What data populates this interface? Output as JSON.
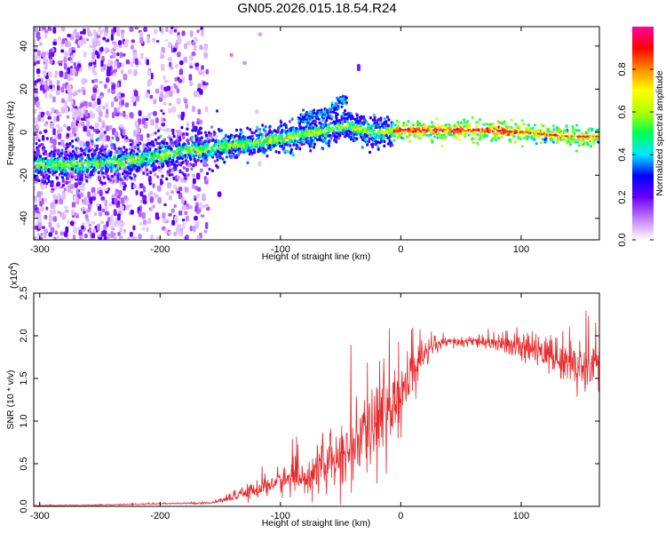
{
  "figure": {
    "title": "GN05.2026.015.18.54.R24"
  },
  "chart_data": [
    {
      "type": "heatmap",
      "xlabel": "Height of straight line (km)",
      "ylabel": "Frequency (Hz)",
      "xlim": [
        -305,
        165
      ],
      "ylim": [
        -50,
        49
      ],
      "xticks": [
        -300,
        -200,
        -100,
        0,
        100
      ],
      "yticks": [
        -40,
        -20,
        0,
        20,
        40
      ],
      "colorbar": {
        "label": "Normalized spectral amplitude",
        "range": [
          0,
          1
        ],
        "ticks": [
          "0.0",
          "0.2",
          "0.4",
          "0.6",
          "0.8"
        ],
        "tick_values": [
          0.0,
          0.2,
          0.4,
          0.6,
          0.8
        ],
        "colors": [
          "#ffffff",
          "#c27bff",
          "#6a00ff",
          "#0000ff",
          "#00e5ff",
          "#00ff55",
          "#b4ff00",
          "#ffff00",
          "#ff8c00",
          "#ff0000",
          "#ff00a0"
        ]
      },
      "ridge": {
        "x": [
          -305,
          -270,
          -240,
          -220,
          -200,
          -180,
          -160,
          -140,
          -120,
          -100,
          -80,
          -60,
          -45,
          -35,
          -25,
          -15,
          -5,
          0,
          20,
          60,
          100,
          140,
          165
        ],
        "frequency_hz": [
          -15,
          -15,
          -14,
          -13,
          -11,
          -9,
          -8,
          -6,
          -5,
          -3,
          -1,
          1,
          3,
          2,
          0,
          0,
          0.5,
          1,
          1,
          1,
          0,
          -2,
          -2
        ]
      },
      "side_branch": {
        "x": [
          -85,
          -70,
          -60,
          -50,
          -45
        ],
        "frequency_hz": [
          6,
          8,
          10,
          14,
          16
        ],
        "point": [
          -35,
          30
        ]
      }
    },
    {
      "type": "line",
      "xlabel": "Height of straight line (km)",
      "ylabel": "SNR (10 * v/v)",
      "multiplier": "(x10",
      "multiplier_exp": "4",
      "multiplier_close": ")",
      "xlim": [
        -305,
        165
      ],
      "ylim": [
        0,
        2.5
      ],
      "xticks": [
        -300,
        -200,
        -100,
        0,
        100
      ],
      "yticks": [
        "0.0",
        "0.5",
        "1.0",
        "1.5",
        "2.0",
        "2.5"
      ],
      "ytick_values": [
        0.0,
        0.5,
        1.0,
        1.5,
        2.0,
        2.5
      ],
      "series": [
        {
          "color": "#e8292b",
          "envelope_x": [
            -305,
            -250,
            -200,
            -160,
            -150,
            -140,
            -130,
            -120,
            -110,
            -100,
            -90,
            -80,
            -70,
            -60,
            -50,
            -40,
            -30,
            -20,
            -10,
            0,
            10,
            20,
            30,
            40,
            60,
            80,
            100,
            120,
            140,
            160,
            165
          ],
          "envelope_y": [
            0.01,
            0.015,
            0.03,
            0.04,
            0.06,
            0.1,
            0.15,
            0.2,
            0.25,
            0.3,
            0.32,
            0.35,
            0.4,
            0.5,
            0.55,
            0.7,
            0.8,
            1.0,
            1.15,
            1.3,
            1.55,
            1.8,
            1.88,
            1.92,
            1.93,
            1.9,
            1.85,
            1.8,
            1.7,
            1.6,
            1.55
          ],
          "noise_y": [
            0.004,
            0.004,
            0.008,
            0.01,
            0.02,
            0.04,
            0.07,
            0.1,
            0.13,
            0.15,
            0.17,
            0.2,
            0.22,
            0.28,
            0.32,
            0.38,
            0.45,
            0.5,
            0.55,
            0.45,
            0.25,
            0.15,
            0.08,
            0.06,
            0.05,
            0.08,
            0.14,
            0.2,
            0.26,
            0.3,
            0.3
          ]
        }
      ]
    }
  ]
}
